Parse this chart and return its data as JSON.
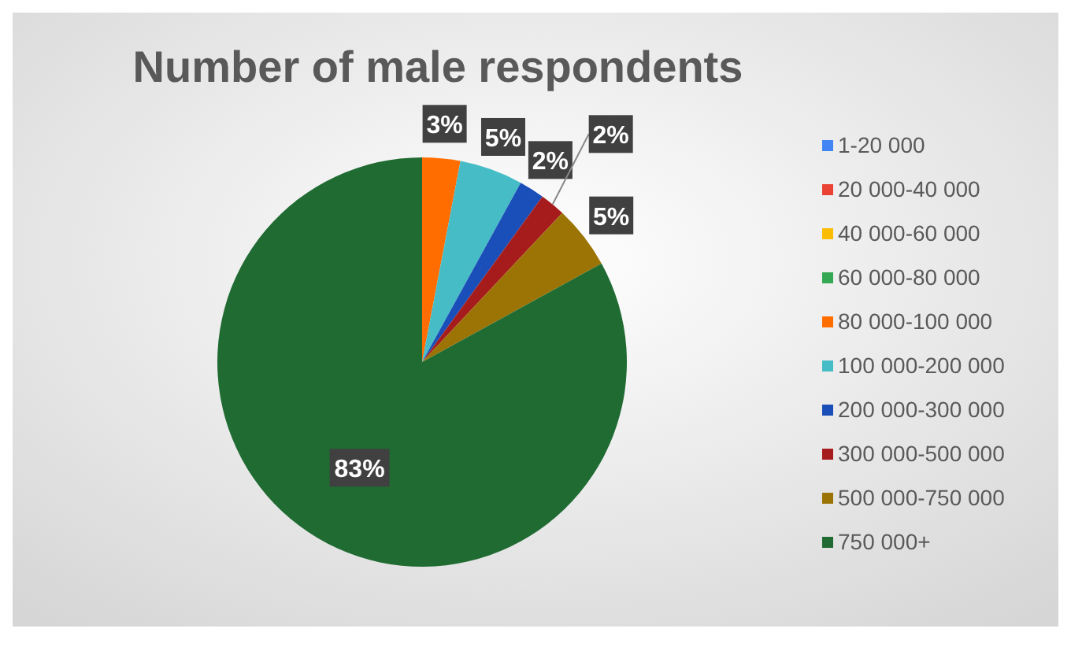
{
  "chart_data": {
    "type": "pie",
    "title": "Number of male respondents",
    "categories": [
      "1-20 000",
      "20 000-40 000",
      "40 000-60 000",
      "60 000-80 000",
      "80 000-100 000",
      "100 000-200 000",
      "200 000-300 000",
      "300 000-500 000",
      "500 000-750 000",
      "750 000+"
    ],
    "values": [
      0,
      0,
      0,
      0,
      3,
      5,
      2,
      2,
      5,
      83
    ],
    "colors": [
      "#4285f4",
      "#ea4335",
      "#fbbc04",
      "#34a853",
      "#ff6d01",
      "#46bdc6",
      "#1a4eb8",
      "#a61c1c",
      "#9c7405",
      "#1f6b32"
    ],
    "value_labels": [
      null,
      null,
      null,
      null,
      "3%",
      "5%",
      "2%",
      "2%",
      "5%",
      "83%"
    ],
    "legend": "right"
  }
}
